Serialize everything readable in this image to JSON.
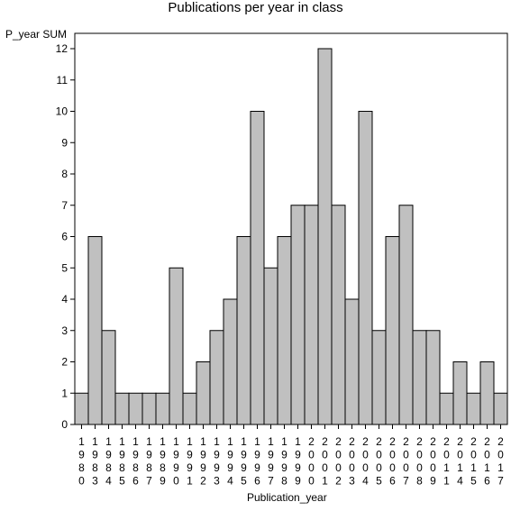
{
  "chart_data": {
    "type": "bar",
    "title": "Publications per year in class",
    "xlabel": "Publication_year",
    "ylabel": "P_year SUM",
    "categories": [
      "1980",
      "1983",
      "1984",
      "1985",
      "1986",
      "1987",
      "1989",
      "1990",
      "1991",
      "1992",
      "1993",
      "1994",
      "1995",
      "1996",
      "1997",
      "1998",
      "1999",
      "2000",
      "2001",
      "2002",
      "2003",
      "2004",
      "2005",
      "2006",
      "2007",
      "2008",
      "2009",
      "2011",
      "2014",
      "2015",
      "2016",
      "2017"
    ],
    "values": [
      1,
      6,
      3,
      1,
      1,
      1,
      1,
      5,
      1,
      2,
      3,
      4,
      6,
      10,
      5,
      6,
      7,
      7,
      12,
      7,
      4,
      10,
      3,
      6,
      7,
      3,
      3,
      1,
      2,
      1,
      2,
      1
    ],
    "ylim": [
      0,
      12
    ],
    "yticks": [
      0,
      1,
      2,
      3,
      4,
      5,
      6,
      7,
      8,
      9,
      10,
      11,
      12
    ],
    "bar_color": "#c0c0c0",
    "grid": false,
    "legend": false
  }
}
